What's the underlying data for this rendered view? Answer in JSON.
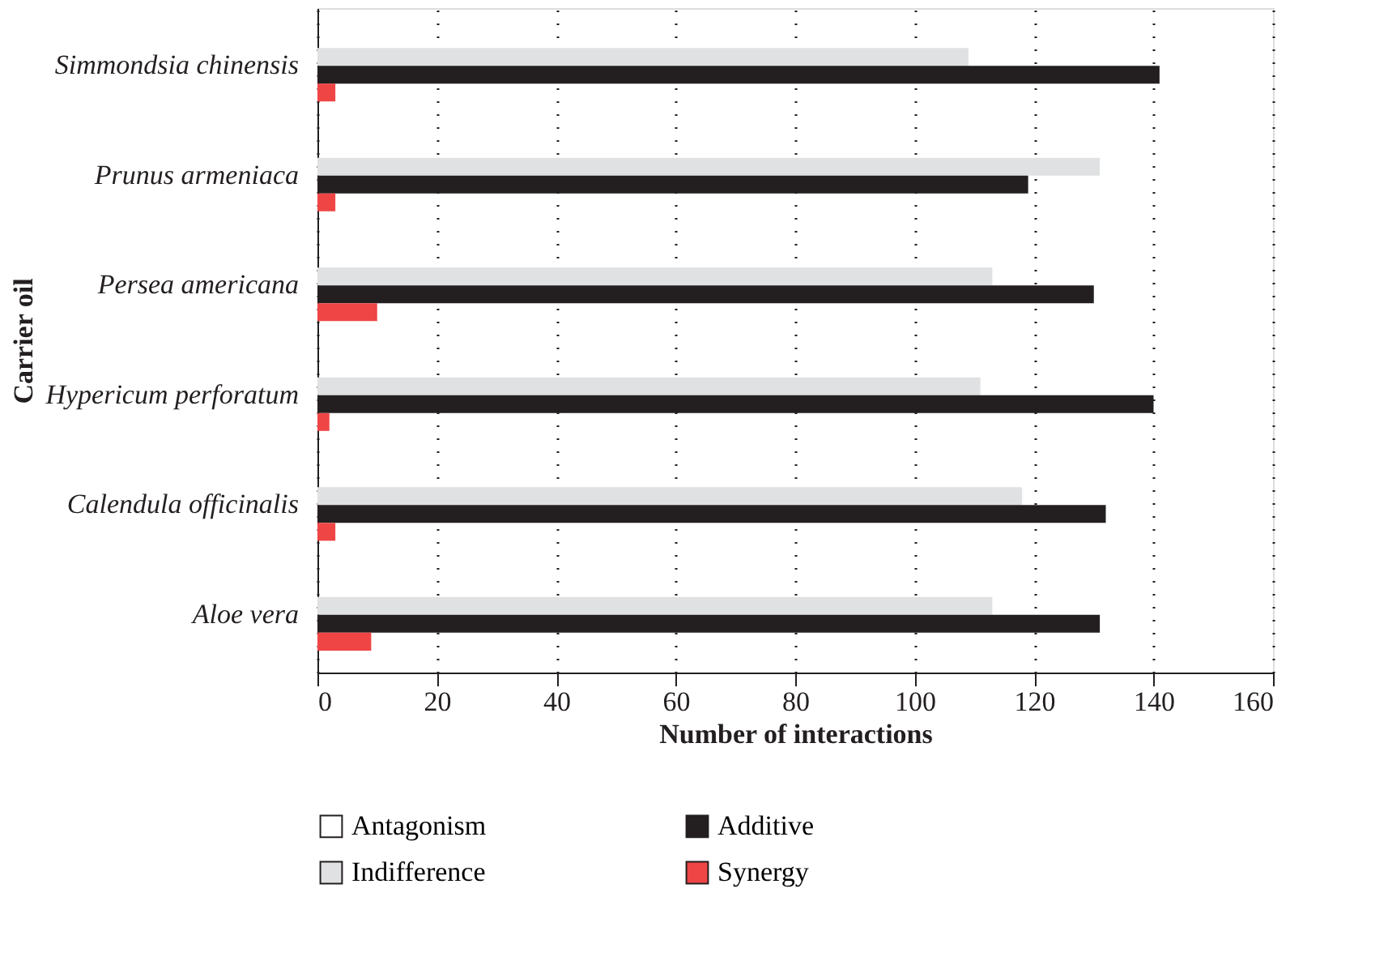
{
  "chart_data": {
    "type": "bar",
    "orientation": "horizontal",
    "xlabel": "Number of interactions",
    "ylabel": "Carrier oil",
    "categories": [
      "Simmondsia chinensis",
      "Prunus armeniaca",
      "Persea americana",
      "Hypericum perforatum",
      "Calendula officinalis",
      "Aloe vera"
    ],
    "series": [
      {
        "name": "Antagonism",
        "color": "#ffffff",
        "values": [
          0,
          0,
          0,
          0,
          0,
          0
        ]
      },
      {
        "name": "Indifference",
        "color": "#e0e1e2",
        "values": [
          109,
          131,
          113,
          111,
          118,
          113
        ]
      },
      {
        "name": "Additive",
        "color": "#231f20",
        "values": [
          141,
          119,
          130,
          140,
          132,
          131
        ]
      },
      {
        "name": "Synergy",
        "color": "#ef4545",
        "values": [
          3,
          3,
          10,
          2,
          3,
          9
        ]
      }
    ],
    "xlim": [
      0,
      160
    ],
    "xticks": [
      0,
      20,
      40,
      60,
      80,
      100,
      120,
      140,
      160
    ],
    "grid": "x",
    "legend": "bottom"
  }
}
